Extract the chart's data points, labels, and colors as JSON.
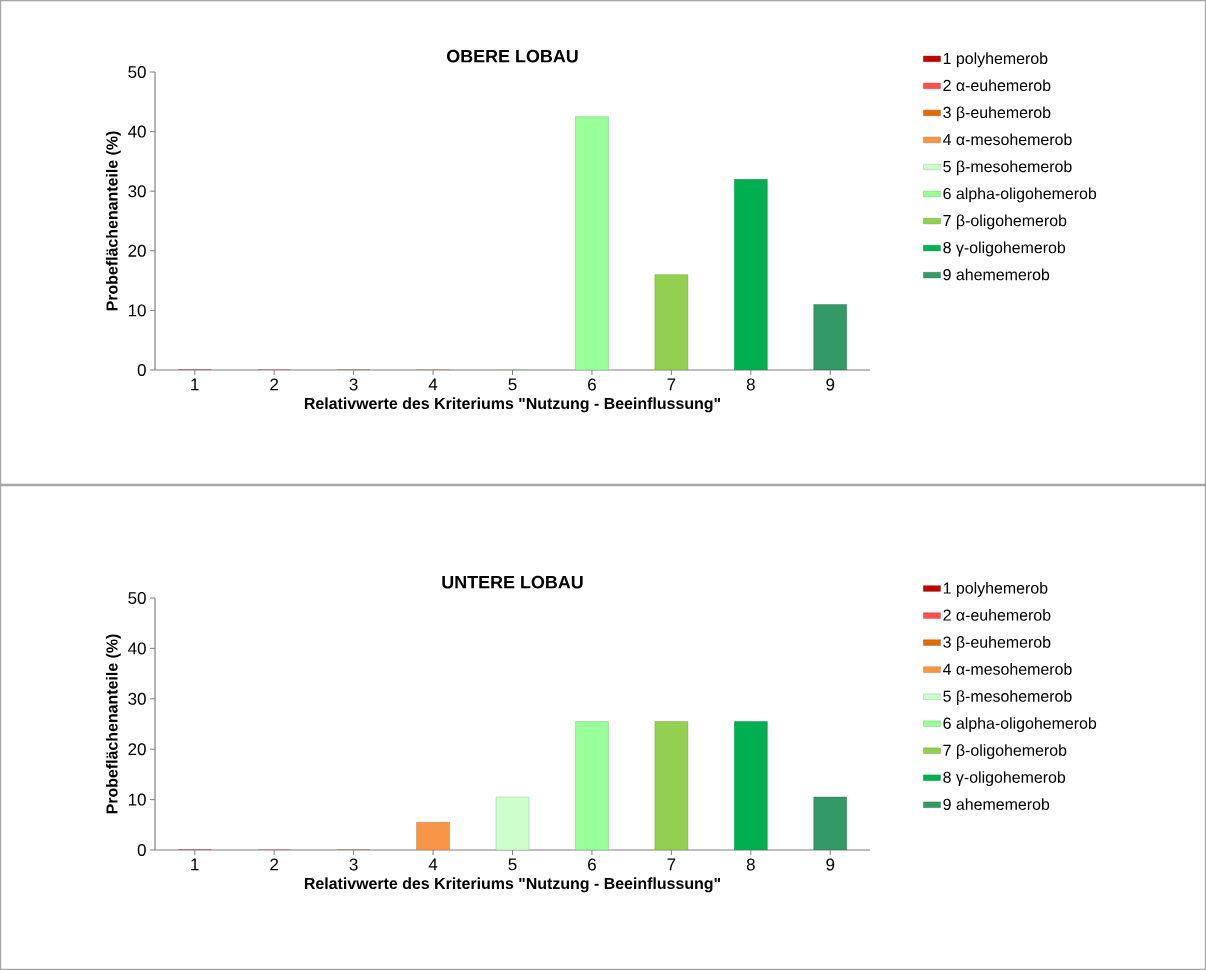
{
  "chart_data": [
    {
      "type": "bar",
      "title": "OBERE LOBAU",
      "xlabel": "Relativwerte des Kriteriums \"Nutzung - Beeinflussung\"",
      "ylabel": "Probeflächenanteile  (%)",
      "categories": [
        "1",
        "2",
        "3",
        "4",
        "5",
        "6",
        "7",
        "8",
        "9"
      ],
      "ylim": [
        0,
        50
      ],
      "yticks": [
        0,
        10,
        20,
        30,
        40,
        50
      ],
      "legend": "right",
      "series": [
        {
          "name": "1 polyhemerob",
          "color": "#c00000",
          "values": [
            0,
            null,
            null,
            null,
            null,
            null,
            null,
            null,
            null
          ]
        },
        {
          "name": "2 α-euhemerob",
          "color": "#ff5050",
          "values": [
            null,
            0,
            null,
            null,
            null,
            null,
            null,
            null,
            null
          ]
        },
        {
          "name": "3 β-euhemerob",
          "color": "#e26b0a",
          "values": [
            null,
            null,
            0,
            null,
            null,
            null,
            null,
            null,
            null
          ]
        },
        {
          "name": "4 α-mesohemerob",
          "color": "#f79646",
          "values": [
            null,
            null,
            null,
            0,
            null,
            null,
            null,
            null,
            null
          ]
        },
        {
          "name": "5 β-mesohemerob",
          "color": "#ccffcc",
          "values": [
            null,
            null,
            null,
            null,
            0,
            null,
            null,
            null,
            null
          ]
        },
        {
          "name": "6 alpha-oligohemerob",
          "color": "#99ff99",
          "values": [
            null,
            null,
            null,
            null,
            null,
            42.5,
            null,
            null,
            null
          ]
        },
        {
          "name": "7 β-oligohemerob",
          "color": "#92d050",
          "values": [
            null,
            null,
            null,
            null,
            null,
            null,
            16,
            null,
            null
          ]
        },
        {
          "name": "8 γ-oligohemerob",
          "color": "#00b050",
          "values": [
            null,
            null,
            null,
            null,
            null,
            null,
            null,
            32,
            null
          ]
        },
        {
          "name": "9 ahememerob",
          "color": "#339966",
          "values": [
            null,
            null,
            null,
            null,
            null,
            null,
            null,
            null,
            11
          ]
        }
      ]
    },
    {
      "type": "bar",
      "title": "UNTERE LOBAU",
      "xlabel": "Relativwerte des Kriteriums \"Nutzung - Beeinflussung\"",
      "ylabel": "Probeflächenanteile  (%)",
      "categories": [
        "1",
        "2",
        "3",
        "4",
        "5",
        "6",
        "7",
        "8",
        "9"
      ],
      "ylim": [
        0,
        50
      ],
      "yticks": [
        0,
        10,
        20,
        30,
        40,
        50
      ],
      "legend": "right",
      "series": [
        {
          "name": "1 polyhemerob",
          "color": "#c00000",
          "values": [
            0,
            null,
            null,
            null,
            null,
            null,
            null,
            null,
            null
          ]
        },
        {
          "name": "2 α-euhemerob",
          "color": "#ff5050",
          "values": [
            null,
            0,
            null,
            null,
            null,
            null,
            null,
            null,
            null
          ]
        },
        {
          "name": "3 β-euhemerob",
          "color": "#e26b0a",
          "values": [
            null,
            null,
            0,
            null,
            null,
            null,
            null,
            null,
            null
          ]
        },
        {
          "name": "4 α-mesohemerob",
          "color": "#f79646",
          "values": [
            null,
            null,
            null,
            5.5,
            null,
            null,
            null,
            null,
            null
          ]
        },
        {
          "name": "5 β-mesohemerob",
          "color": "#ccffcc",
          "values": [
            null,
            null,
            null,
            null,
            10.5,
            null,
            null,
            null,
            null
          ]
        },
        {
          "name": "6 alpha-oligohemerob",
          "color": "#99ff99",
          "values": [
            null,
            null,
            null,
            null,
            null,
            25.5,
            null,
            null,
            null
          ]
        },
        {
          "name": "7 β-oligohemerob",
          "color": "#92d050",
          "values": [
            null,
            null,
            null,
            null,
            null,
            null,
            25.5,
            null,
            null
          ]
        },
        {
          "name": "8 γ-oligohemerob",
          "color": "#00b050",
          "values": [
            null,
            null,
            null,
            null,
            null,
            null,
            null,
            25.5,
            null
          ]
        },
        {
          "name": "9 ahememerob",
          "color": "#339966",
          "values": [
            null,
            null,
            null,
            null,
            null,
            null,
            null,
            null,
            10.5
          ]
        }
      ]
    }
  ]
}
